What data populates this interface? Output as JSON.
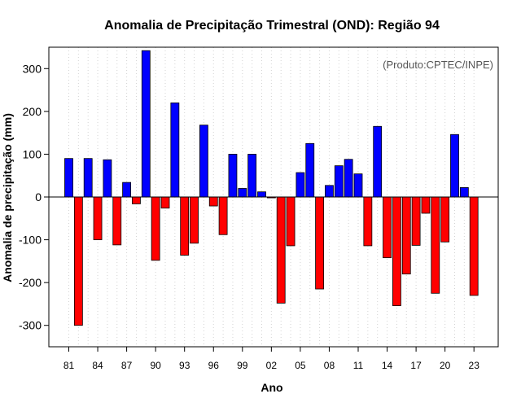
{
  "chart_data": {
    "type": "bar",
    "title": "Anomalia de Precipitação Trimestral (OND): Região 94",
    "credit": "(Produto:CPTEC/INPE)",
    "xlabel": "Ano",
    "ylabel": "Anomalia de precipitação (mm)",
    "ylim": [
      -350,
      350
    ],
    "yticks": [
      -300,
      -200,
      -100,
      0,
      100,
      200,
      300
    ],
    "xtick_labels": [
      "81",
      "84",
      "87",
      "90",
      "93",
      "96",
      "99",
      "02",
      "05",
      "08",
      "11",
      "14",
      "17",
      "20",
      "23"
    ],
    "xtick_years": [
      1981,
      1984,
      1987,
      1990,
      1993,
      1996,
      1999,
      2002,
      2005,
      2008,
      2011,
      2014,
      2017,
      2020,
      2023
    ],
    "grid": "vertical-dotted",
    "positive_color": "#0000ff",
    "negative_color": "#ff0000",
    "categories": [
      1981,
      1982,
      1983,
      1984,
      1985,
      1986,
      1987,
      1988,
      1989,
      1990,
      1991,
      1992,
      1993,
      1994,
      1995,
      1996,
      1997,
      1998,
      1999,
      2000,
      2001,
      2002,
      2003,
      2004,
      2005,
      2006,
      2007,
      2008,
      2009,
      2010,
      2011,
      2012,
      2013,
      2014,
      2015,
      2016,
      2017,
      2018,
      2019,
      2020,
      2021,
      2022,
      2023
    ],
    "values": [
      90,
      -300,
      90,
      -100,
      87,
      -112,
      34,
      -16,
      342,
      -148,
      -26,
      220,
      -136,
      -108,
      168,
      -21,
      -88,
      100,
      20,
      100,
      12,
      -2,
      -248,
      -114,
      57,
      125,
      -215,
      27,
      73,
      88,
      54,
      -114,
      165,
      -142,
      -254,
      -180,
      -113,
      -38,
      -225,
      -105,
      146,
      22,
      -230
    ]
  }
}
